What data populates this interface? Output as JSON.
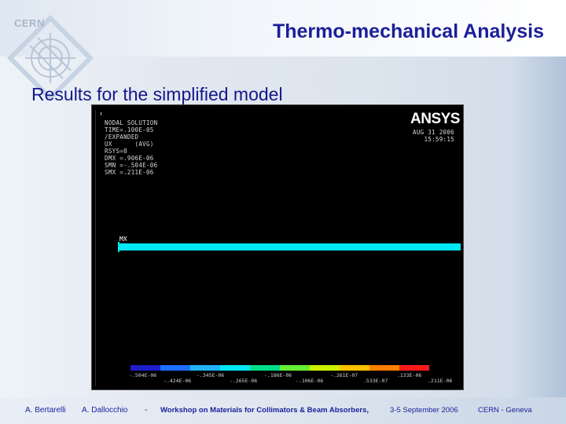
{
  "header": {
    "logo_text": "CERN",
    "title": "Thermo-mechanical Analysis",
    "subtitle": "Results for the simplified model"
  },
  "simulation": {
    "info_lines": [
      "NODAL SOLUTION",
      "TIME=.100E-05",
      "/EXPANDED",
      "UX      (AVG)",
      "RSYS=0",
      "DMX =.906E-06",
      "SMN =-.504E-06",
      "SMX =.211E-06"
    ],
    "brand": "ANSYS",
    "date_line": "AUG 31 2006",
    "time_line": "15:59:15",
    "mx_label": "MX",
    "legend": {
      "colors": [
        "#1d1dcc",
        "#1d6fff",
        "#20b4ff",
        "#00e8f2",
        "#00dd88",
        "#66ee33",
        "#ccf000",
        "#ffc000",
        "#ff7f00",
        "#ff1a1a"
      ],
      "lower_labels": [
        "-.504E-06",
        "-.345E-06",
        "-.186E-06",
        "-.261E-07",
        ".133E-06"
      ],
      "upper_labels": [
        "-.424E-06",
        "-.265E-06",
        "-.106E-06",
        ".533E-07",
        ".211E-06"
      ]
    }
  },
  "footer": {
    "author1": "A. Bertarelli",
    "author2": "A. Dallocchio",
    "separator": "-",
    "workshop_bold": "Workshop on Materials for Collimators & Beam Absorbers,",
    "workshop_date": "3-5 September 2006",
    "location": "CERN - Geneva"
  }
}
